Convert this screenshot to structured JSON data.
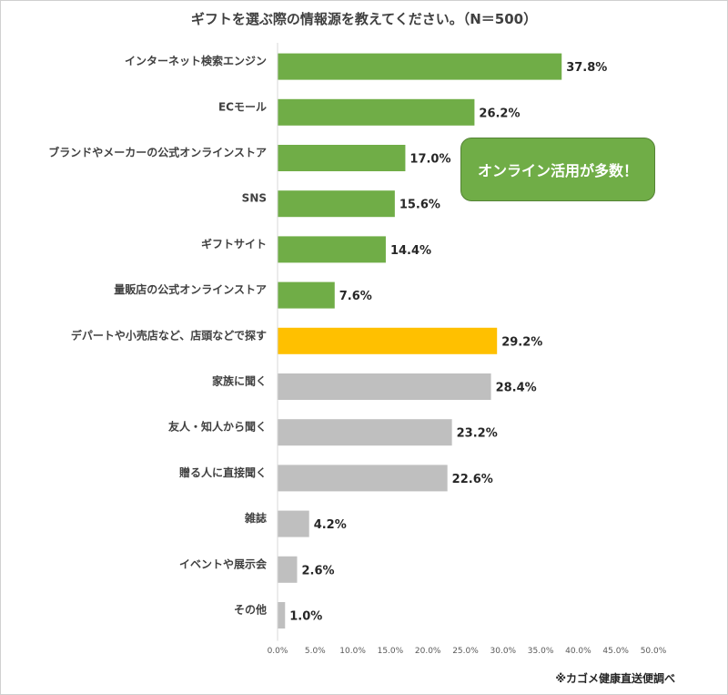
{
  "chart_data": {
    "type": "bar",
    "orientation": "horizontal",
    "title": "ギフトを選ぶ際の情報源を教えてください。（N＝500）",
    "categories": [
      "インターネット検索エンジン",
      "ECモール",
      "ブランドやメーカーの公式オンラインストア",
      "SNS",
      "ギフトサイト",
      "量販店の公式オンラインストア",
      "デパートや小売店など、店頭などで探す",
      "家族に聞く",
      "友人・知人から聞く",
      "贈る人に直接聞く",
      "雑誌",
      "イベントや展示会",
      "その他"
    ],
    "values": [
      37.8,
      26.2,
      17.0,
      15.6,
      14.4,
      7.6,
      29.2,
      28.4,
      23.2,
      22.6,
      4.2,
      2.6,
      1.0
    ],
    "value_labels": [
      "37.8%",
      "26.2%",
      "17.0%",
      "15.6%",
      "14.4%",
      "7.6%",
      "29.2%",
      "28.4%",
      "23.2%",
      "22.6%",
      "4.2%",
      "2.6%",
      "1.0%"
    ],
    "groups": [
      "online",
      "online",
      "online",
      "online",
      "online",
      "online",
      "store",
      "people",
      "people",
      "people",
      "other",
      "other",
      "other"
    ],
    "xlim": [
      0,
      50
    ],
    "xticks": [
      "0.0%",
      "5.0%",
      "10.0%",
      "15.0%",
      "20.0%",
      "25.0%",
      "30.0%",
      "35.0%",
      "40.0%",
      "45.0%",
      "50.0%"
    ],
    "colors": {
      "online": "#70ad47",
      "store": "#ffc000",
      "people": "#bfbfbf",
      "other": "#bfbfbf"
    },
    "annotation": "オンライン活用が多数！",
    "grid": false
  },
  "source_note": "※カゴメ健康直送便調べ"
}
